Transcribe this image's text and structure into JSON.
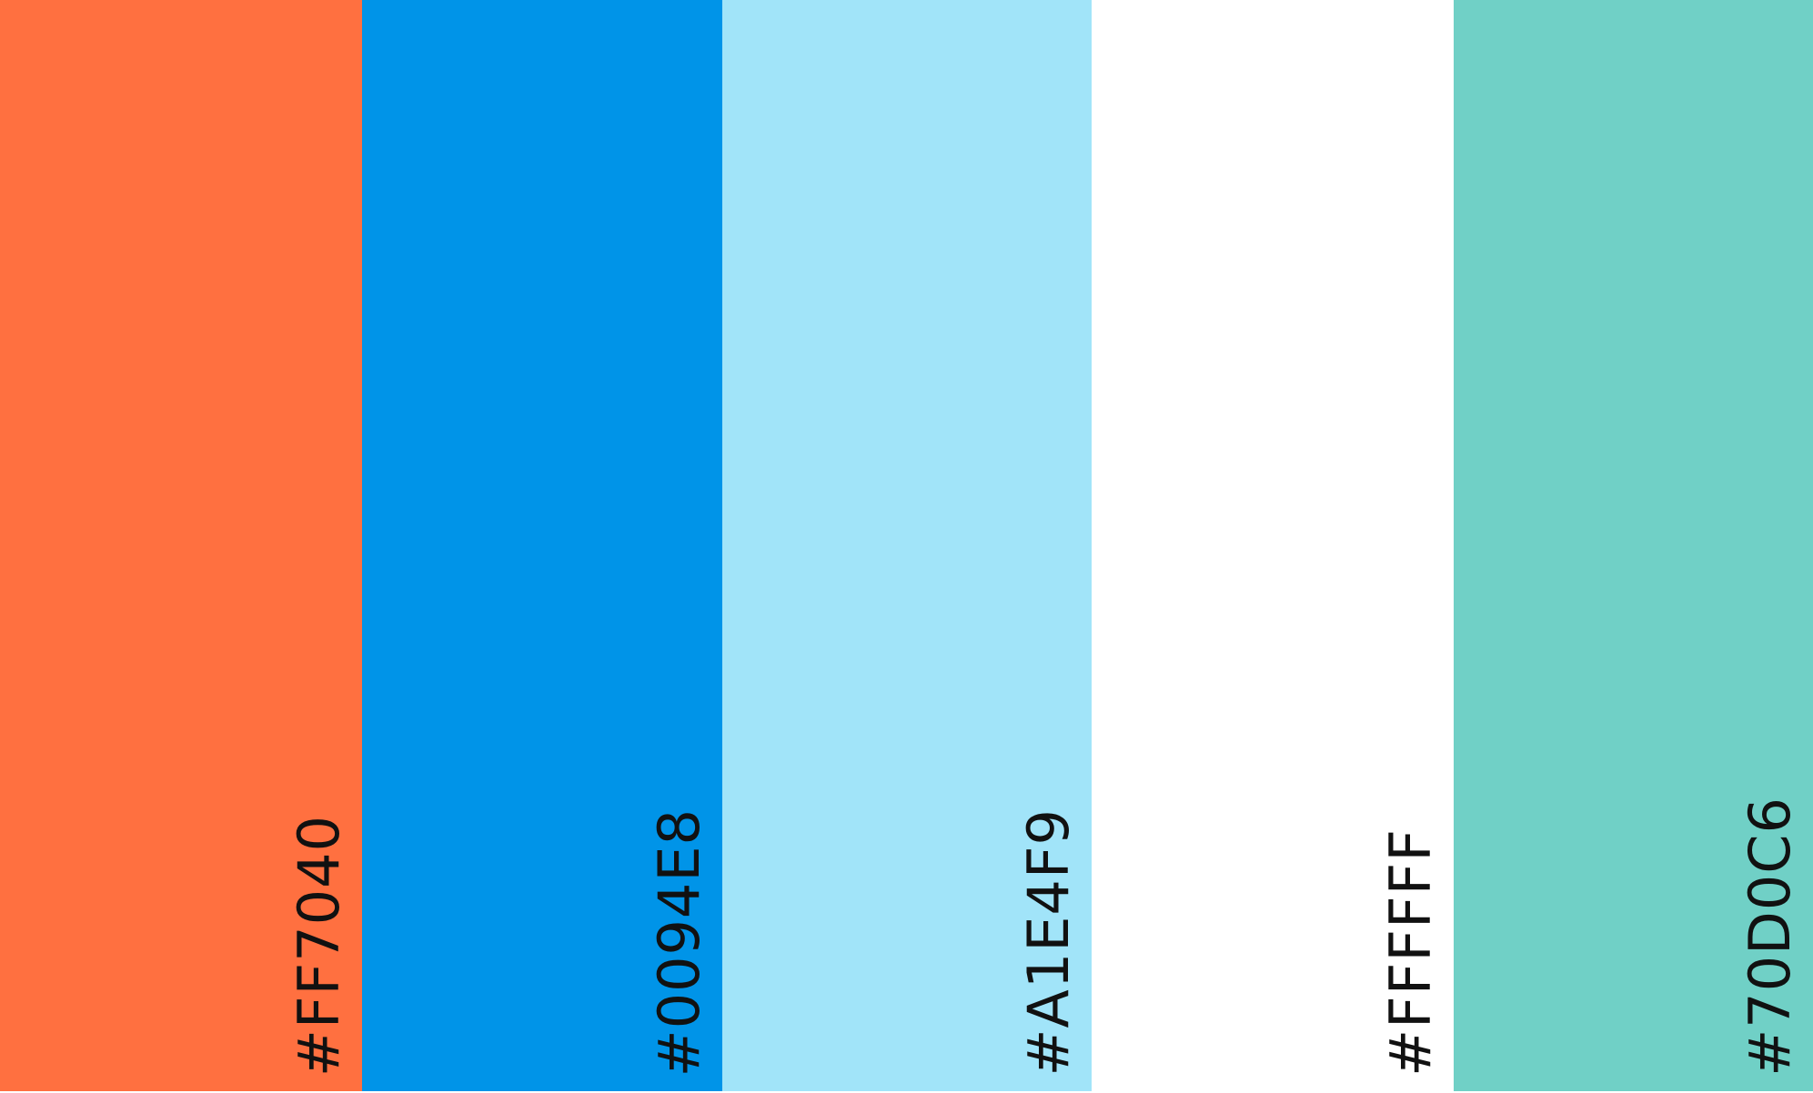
{
  "palette": {
    "swatches": [
      {
        "hex": "#FF7040",
        "label": "#FF7040"
      },
      {
        "hex": "#0094E8",
        "label": "#0094E8"
      },
      {
        "hex": "#A1E4F9",
        "label": "#A1E4F9"
      },
      {
        "hex": "#FFFFFF",
        "label": "#FFFFFF"
      },
      {
        "hex": "#70D0C6",
        "label": "#70D0C6"
      }
    ]
  }
}
